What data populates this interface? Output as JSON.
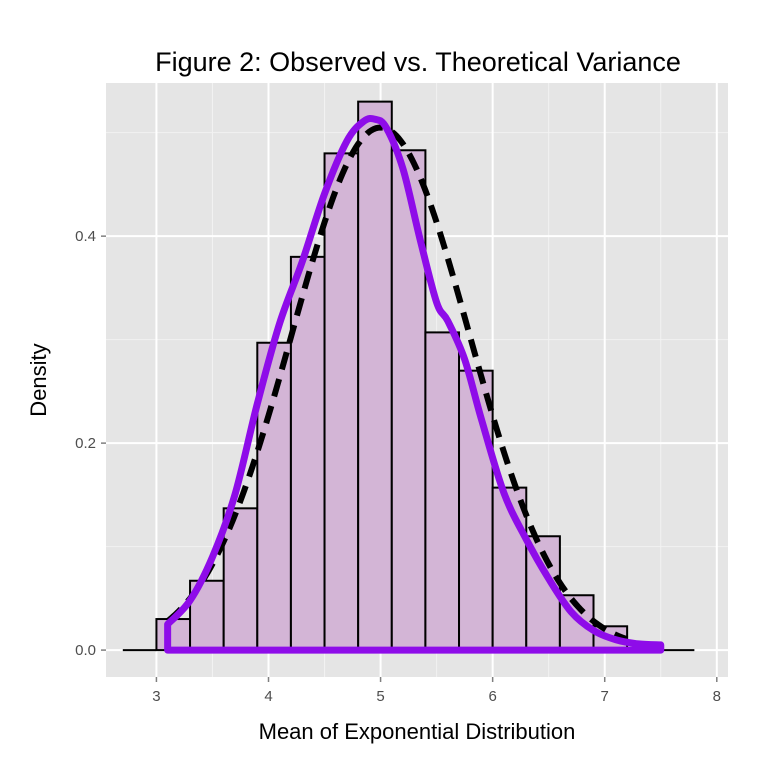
{
  "chart_data": {
    "type": "histogram",
    "title": "Figure 2: Observed vs. Theoretical Variance",
    "xlabel": "Mean of Exponential Distribution",
    "ylabel": "Density",
    "xlim": [
      2.55,
      8.1
    ],
    "ylim": [
      -0.026,
      0.548
    ],
    "x_ticks": [
      3,
      4,
      5,
      6,
      7,
      8
    ],
    "y_ticks": [
      0.0,
      0.2,
      0.4
    ],
    "x_tick_labels": [
      "3",
      "4",
      "5",
      "6",
      "7",
      "8"
    ],
    "y_tick_labels": [
      "0.0",
      "0.2",
      "0.4"
    ],
    "grid": true,
    "bin_width": 0.3,
    "bins": [
      {
        "x0": 2.7,
        "x1": 3.0,
        "density": 0.0
      },
      {
        "x0": 3.0,
        "x1": 3.3,
        "density": 0.03
      },
      {
        "x0": 3.3,
        "x1": 3.6,
        "density": 0.067
      },
      {
        "x0": 3.6,
        "x1": 3.9,
        "density": 0.137
      },
      {
        "x0": 3.9,
        "x1": 4.2,
        "density": 0.297
      },
      {
        "x0": 4.2,
        "x1": 4.5,
        "density": 0.38
      },
      {
        "x0": 4.5,
        "x1": 4.8,
        "density": 0.48
      },
      {
        "x0": 4.8,
        "x1": 5.1,
        "density": 0.53
      },
      {
        "x0": 5.1,
        "x1": 5.4,
        "density": 0.483
      },
      {
        "x0": 5.4,
        "x1": 5.7,
        "density": 0.307
      },
      {
        "x0": 5.7,
        "x1": 6.0,
        "density": 0.27
      },
      {
        "x0": 6.0,
        "x1": 6.3,
        "density": 0.157
      },
      {
        "x0": 6.3,
        "x1": 6.6,
        "density": 0.11
      },
      {
        "x0": 6.6,
        "x1": 6.9,
        "density": 0.053
      },
      {
        "x0": 6.9,
        "x1": 7.2,
        "density": 0.023
      },
      {
        "x0": 7.2,
        "x1": 7.5,
        "density": 0.0
      },
      {
        "x0": 7.5,
        "x1": 7.8,
        "density": 0.0
      }
    ],
    "theoretical_normal": {
      "mean": 5.0,
      "sd": 0.79,
      "style": "dashed",
      "color": "#000000"
    },
    "observed_density": {
      "color": "#8e0ce9",
      "x": [
        3.1,
        3.3,
        3.5,
        3.7,
        3.9,
        4.1,
        4.3,
        4.5,
        4.7,
        4.85,
        4.95,
        5.05,
        5.2,
        5.35,
        5.5,
        5.6,
        5.75,
        5.9,
        6.1,
        6.3,
        6.5,
        6.7,
        6.9,
        7.1,
        7.3,
        7.5
      ],
      "y": [
        0.025,
        0.048,
        0.09,
        0.15,
        0.238,
        0.316,
        0.375,
        0.441,
        0.492,
        0.511,
        0.513,
        0.505,
        0.465,
        0.398,
        0.336,
        0.318,
        0.281,
        0.223,
        0.152,
        0.107,
        0.069,
        0.037,
        0.019,
        0.01,
        0.006,
        0.005
      ]
    },
    "colors": {
      "panel_bg": "#e5e5e5",
      "grid_major": "#ffffff",
      "grid_minor": "#f2f2f2",
      "bar_fill": "#d3b5d6",
      "bar_stroke": "#000000"
    }
  }
}
